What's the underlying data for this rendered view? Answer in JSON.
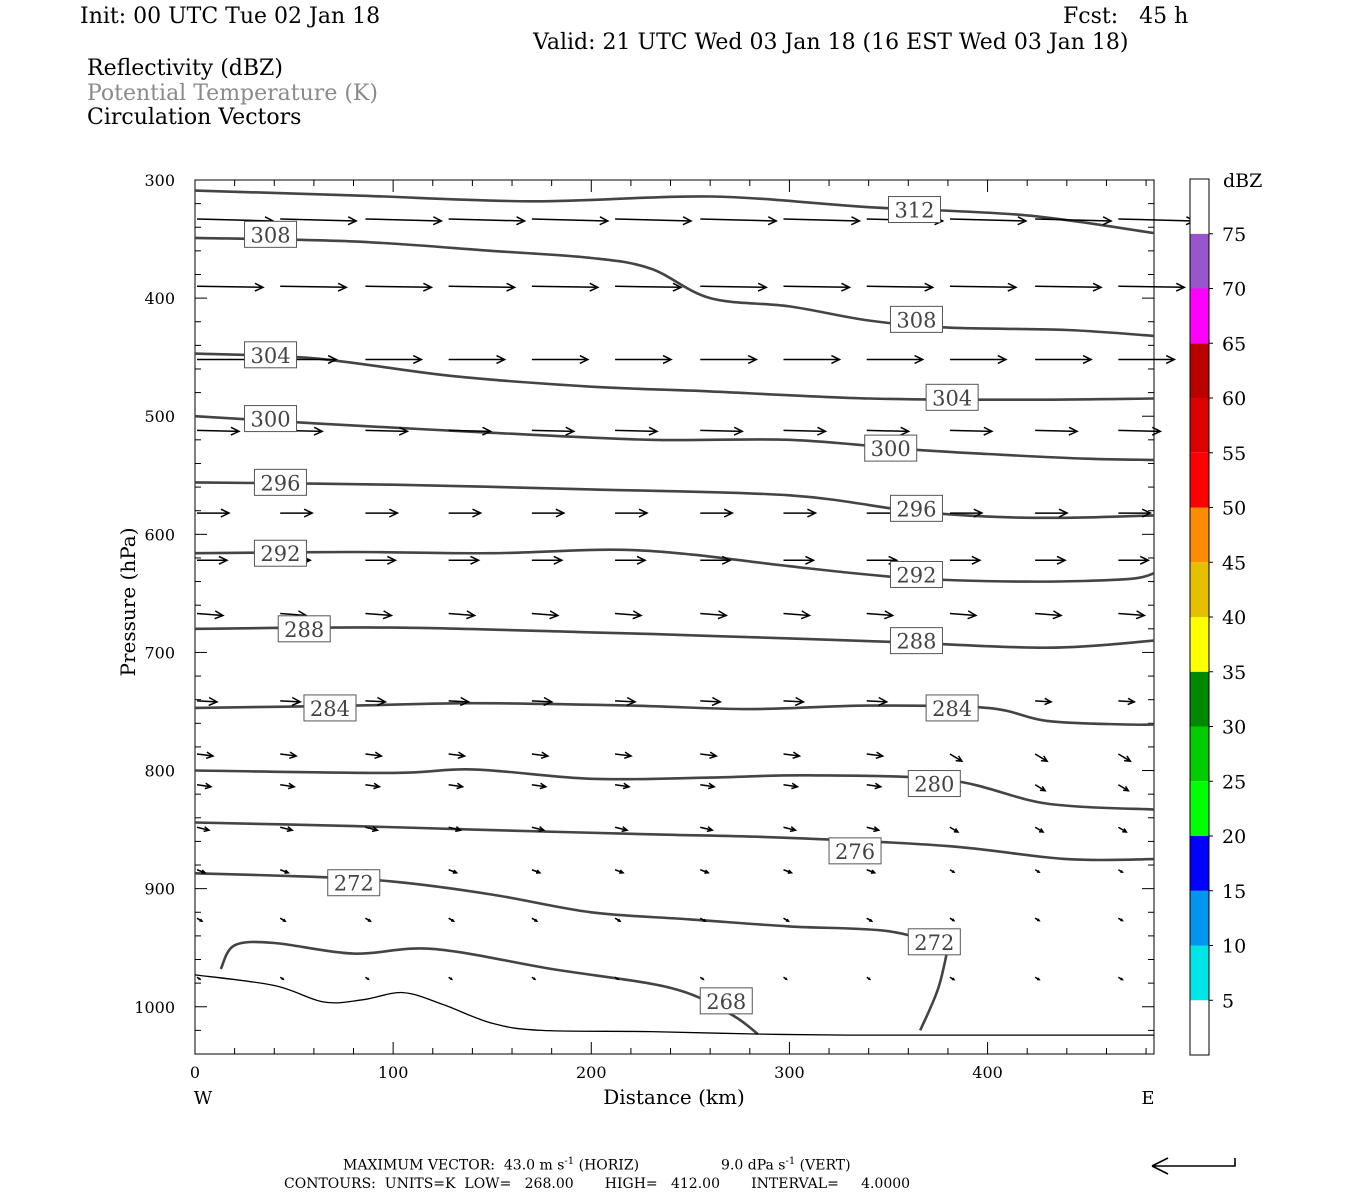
{
  "header": {
    "init": "Init: 00 UTC Tue 02 Jan 18",
    "fcst": "Fcst:   45 h",
    "valid": "Valid: 21 UTC Wed 03 Jan 18 (16 EST Wed 03 Jan 18)",
    "field1": "Reflectivity (dBZ)",
    "field2": "Potential Temperature (K)",
    "field3": "Circulation Vectors"
  },
  "footer": {
    "line1a": "MAXIMUM VECTOR:  43.0 m s",
    "line1b": " (HORIZ)",
    "line1c": "9.0 dPa s",
    "line1d": " (VERT)",
    "sup": "-1",
    "line2": "CONTOURS:  UNITS=K  LOW=   268.00       HIGH=   412.00       INTERVAL=     4.0000"
  },
  "chart_data": {
    "type": "cross-section contour",
    "xlabel": "Distance (km)",
    "ylabel": "Pressure (hPa)",
    "xlim": [
      0,
      484
    ],
    "ylim": [
      1040,
      300
    ],
    "x_ticks": [
      0,
      100,
      200,
      300,
      400
    ],
    "x_ticklabels": [
      "0",
      "100",
      "200",
      "300",
      "400"
    ],
    "y_ticks": [
      300,
      400,
      500,
      600,
      700,
      800,
      900,
      1000
    ],
    "y_ticklabels": [
      "300",
      "400",
      "500",
      "600",
      "700",
      "800",
      "900",
      "1000"
    ],
    "left_end_label": "W",
    "right_end_label": "E",
    "theta_contours": [
      {
        "level": 312,
        "label_at": [
          [
            350,
            325
          ]
        ],
        "points": [
          [
            0,
            309
          ],
          [
            80,
            313
          ],
          [
            170,
            318
          ],
          [
            260,
            314
          ],
          [
            340,
            323
          ],
          [
            420,
            330
          ],
          [
            484,
            345
          ]
        ]
      },
      {
        "level": 308,
        "label_at": [
          [
            25,
            346
          ],
          [
            351,
            418
          ]
        ],
        "points": [
          [
            0,
            349
          ],
          [
            80,
            352
          ],
          [
            150,
            360
          ],
          [
            200,
            366
          ],
          [
            230,
            375
          ],
          [
            260,
            400
          ],
          [
            300,
            407
          ],
          [
            340,
            419
          ],
          [
            380,
            425
          ],
          [
            440,
            427
          ],
          [
            484,
            432
          ]
        ]
      },
      {
        "level": 304,
        "label_at": [
          [
            25,
            448
          ],
          [
            369,
            484
          ]
        ],
        "points": [
          [
            0,
            447
          ],
          [
            60,
            451
          ],
          [
            130,
            466
          ],
          [
            200,
            475
          ],
          [
            260,
            479
          ],
          [
            340,
            485
          ],
          [
            420,
            486
          ],
          [
            484,
            485
          ]
        ]
      },
      {
        "level": 300,
        "label_at": [
          [
            25,
            502
          ],
          [
            338,
            527
          ]
        ],
        "points": [
          [
            0,
            500
          ],
          [
            60,
            506
          ],
          [
            150,
            514
          ],
          [
            230,
            520
          ],
          [
            300,
            520
          ],
          [
            360,
            528
          ],
          [
            400,
            532
          ],
          [
            450,
            536
          ],
          [
            484,
            537
          ]
        ]
      },
      {
        "level": 296,
        "label_at": [
          [
            30,
            556
          ],
          [
            351,
            578
          ]
        ],
        "points": [
          [
            0,
            556
          ],
          [
            100,
            558
          ],
          [
            200,
            562
          ],
          [
            300,
            567
          ],
          [
            360,
            580
          ],
          [
            400,
            585
          ],
          [
            440,
            586
          ],
          [
            484,
            584
          ]
        ]
      },
      {
        "level": 292,
        "label_at": [
          [
            30,
            616
          ],
          [
            351,
            634
          ]
        ],
        "points": [
          [
            0,
            616
          ],
          [
            80,
            615
          ],
          [
            150,
            616
          ],
          [
            210,
            613
          ],
          [
            250,
            617
          ],
          [
            300,
            627
          ],
          [
            360,
            637
          ],
          [
            420,
            640
          ],
          [
            470,
            638
          ],
          [
            484,
            633
          ]
        ]
      },
      {
        "level": 288,
        "label_at": [
          [
            42,
            680
          ],
          [
            351,
            690
          ]
        ],
        "points": [
          [
            0,
            680
          ],
          [
            100,
            679
          ],
          [
            200,
            683
          ],
          [
            260,
            686
          ],
          [
            350,
            691
          ],
          [
            430,
            696
          ],
          [
            484,
            690
          ]
        ]
      },
      {
        "level": 284,
        "label_at": [
          [
            55,
            747
          ],
          [
            369,
            747
          ]
        ],
        "points": [
          [
            0,
            747
          ],
          [
            80,
            745
          ],
          [
            140,
            743
          ],
          [
            220,
            745
          ],
          [
            280,
            748
          ],
          [
            340,
            745
          ],
          [
            400,
            747
          ],
          [
            430,
            758
          ],
          [
            470,
            761
          ],
          [
            484,
            761
          ]
        ]
      },
      {
        "level": 280,
        "label_at": [
          [
            360,
            811
          ]
        ],
        "points": [
          [
            0,
            800
          ],
          [
            100,
            802
          ],
          [
            140,
            799
          ],
          [
            200,
            807
          ],
          [
            260,
            806
          ],
          [
            310,
            804
          ],
          [
            380,
            808
          ],
          [
            430,
            828
          ],
          [
            484,
            833
          ]
        ]
      },
      {
        "level": 276,
        "label_at": [
          [
            320,
            868
          ]
        ],
        "points": [
          [
            0,
            844
          ],
          [
            80,
            847
          ],
          [
            140,
            850
          ],
          [
            230,
            854
          ],
          [
            300,
            857
          ],
          [
            380,
            864
          ],
          [
            440,
            875
          ],
          [
            484,
            875
          ]
        ]
      },
      {
        "level": 272,
        "label_at": [
          [
            67,
            895
          ],
          [
            360,
            945
          ]
        ],
        "points": [
          [
            0,
            887
          ],
          [
            60,
            890
          ],
          [
            100,
            894
          ],
          [
            150,
            905
          ],
          [
            200,
            920
          ],
          [
            250,
            926
          ],
          [
            300,
            932
          ],
          [
            350,
            936
          ],
          [
            380,
            950
          ]
        ]
      },
      {
        "level": 268,
        "label_at": [
          [
            255,
            995
          ]
        ],
        "points": [
          [
            13,
            968
          ],
          [
            20,
            948
          ],
          [
            40,
            946
          ],
          [
            80,
            955
          ],
          [
            120,
            951
          ],
          [
            180,
            968
          ],
          [
            240,
            984
          ],
          [
            270,
            1006
          ],
          [
            284,
            1023
          ]
        ]
      }
    ],
    "open_contour_segment": {
      "points": [
        [
          380,
          950
        ],
        [
          375,
          985
        ],
        [
          366,
          1020
        ]
      ]
    },
    "terrain_line": {
      "points": [
        [
          0,
          973
        ],
        [
          40,
          982
        ],
        [
          65,
          996
        ],
        [
          85,
          994
        ],
        [
          105,
          988
        ],
        [
          125,
          998
        ],
        [
          150,
          1014
        ],
        [
          175,
          1020
        ],
        [
          230,
          1021
        ],
        [
          280,
          1023
        ],
        [
          330,
          1024
        ],
        [
          400,
          1024
        ],
        [
          484,
          1024
        ]
      ]
    },
    "vector_rows_hpa": [
      333,
      346,
      385,
      395,
      446,
      447,
      462,
      503,
      509,
      520,
      534,
      580,
      585,
      592,
      620,
      625,
      659,
      664,
      669,
      680,
      741,
      757,
      768,
      782,
      793,
      809,
      819,
      844,
      857,
      880,
      905,
      913,
      952,
      994
    ],
    "colorbar": {
      "title": "dBZ",
      "labels": [
        "5",
        "10",
        "15",
        "20",
        "25",
        "30",
        "35",
        "40",
        "45",
        "50",
        "55",
        "60",
        "65",
        "70",
        "75"
      ],
      "colors": [
        "#ffffff",
        "#00e5e5",
        "#0096f0",
        "#0000ff",
        "#00ff00",
        "#00cc00",
        "#008800",
        "#ffff00",
        "#e6c000",
        "#ff8c00",
        "#ff0000",
        "#dd0000",
        "#bb0000",
        "#ff00ff",
        "#9955cc",
        "#ffffff"
      ]
    }
  }
}
